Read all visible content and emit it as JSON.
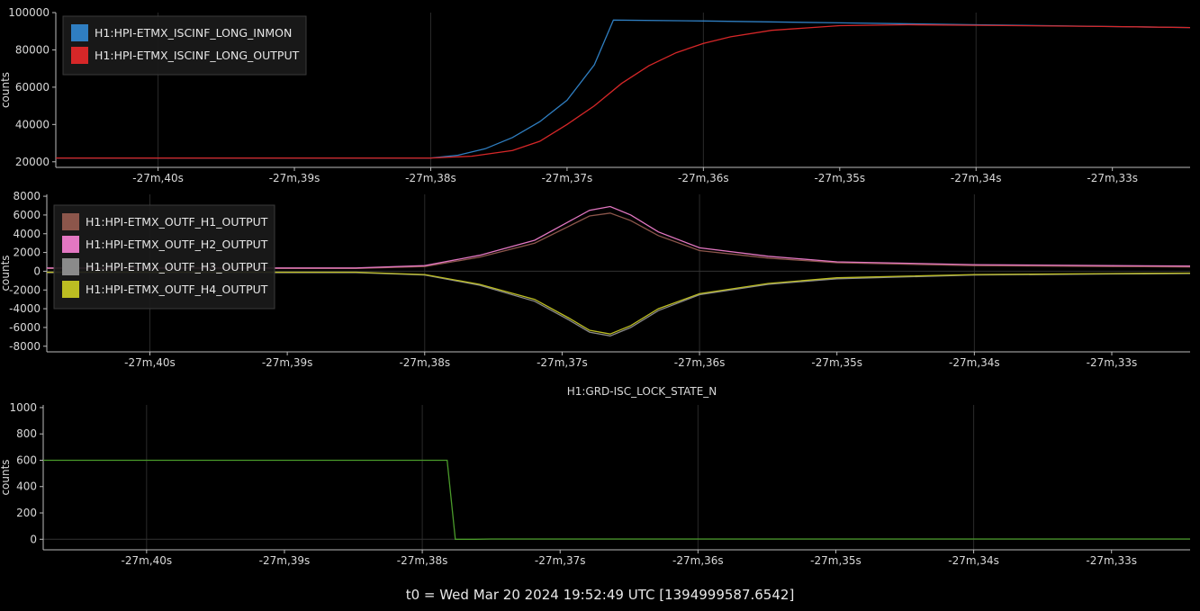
{
  "footer": "t0 = Wed Mar 20 2024 19:52:49 UTC [1394999587.6542]",
  "colors": {
    "background": "#000000",
    "grid": "#2a2a2a",
    "axis": "#bbbbbb",
    "legend_bg": "#1a1a1a"
  },
  "chart_data": [
    {
      "type": "line",
      "title": "",
      "xlabel": "",
      "ylabel": "counts",
      "x_tick_labels": [
        "-27m,40s",
        "-27m,39s",
        "-27m,38s",
        "-27m,37s",
        "-27m,36s",
        "-27m,35s",
        "-27m,34s",
        "-27m,33s"
      ],
      "x_ticks_s": [
        -1660,
        -1659,
        -1658,
        -1657,
        -1656,
        -1655,
        -1654,
        -1653
      ],
      "xlim": [
        -1660.75,
        -1652.43
      ],
      "ylim": [
        17000,
        100000
      ],
      "y_ticks": [
        20000,
        40000,
        60000,
        80000,
        100000
      ],
      "legend_position": "top-left",
      "series": [
        {
          "name": "H1:HPI-ETMX_ISCINF_LONG_INMON",
          "color": "#2f7ec1",
          "x": [
            -1660.75,
            -1658.0,
            -1657.8,
            -1657.6,
            -1657.4,
            -1657.2,
            -1657.0,
            -1656.8,
            -1656.66,
            -1656.0,
            -1655.0,
            -1654.0,
            -1653.0,
            -1652.43
          ],
          "y": [
            22000,
            22000,
            23500,
            27000,
            33000,
            41500,
            53000,
            72000,
            96000,
            95500,
            94500,
            93500,
            92500,
            92000
          ]
        },
        {
          "name": "H1:HPI-ETMX_ISCINF_LONG_OUTPUT",
          "color": "#d62728",
          "x": [
            -1660.75,
            -1658.0,
            -1657.7,
            -1657.4,
            -1657.2,
            -1657.0,
            -1656.8,
            -1656.6,
            -1656.4,
            -1656.2,
            -1656.0,
            -1655.8,
            -1655.5,
            -1655.0,
            -1654.5,
            -1654.0,
            -1653.0,
            -1652.43
          ],
          "y": [
            22000,
            22000,
            23000,
            26000,
            31000,
            40000,
            50000,
            62000,
            71500,
            78500,
            83500,
            87000,
            90500,
            93000,
            93500,
            93200,
            92500,
            92000
          ]
        }
      ]
    },
    {
      "type": "line",
      "title": "",
      "xlabel": "",
      "ylabel": "counts",
      "x_tick_labels": [
        "-27m,40s",
        "-27m,39s",
        "-27m,38s",
        "-27m,37s",
        "-27m,36s",
        "-27m,35s",
        "-27m,34s",
        "-27m,33s"
      ],
      "x_ticks_s": [
        -1660,
        -1659,
        -1658,
        -1657,
        -1656,
        -1655,
        -1654,
        -1653
      ],
      "xlim": [
        -1660.75,
        -1652.43
      ],
      "ylim": [
        -8600,
        8200
      ],
      "y_ticks": [
        -8000,
        -6000,
        -4000,
        -2000,
        0,
        2000,
        4000,
        6000,
        8000
      ],
      "legend_position": "top-left",
      "series": [
        {
          "name": "H1:HPI-ETMX_OUTF_H1_OUTPUT",
          "color": "#8c564b",
          "x": [
            -1660.75,
            -1658.5,
            -1658.0,
            -1657.6,
            -1657.2,
            -1656.95,
            -1656.8,
            -1656.65,
            -1656.5,
            -1656.3,
            -1656.0,
            -1655.5,
            -1655.0,
            -1654.0,
            -1653.0,
            -1652.43
          ],
          "y": [
            300,
            300,
            500,
            1500,
            3000,
            4800,
            5900,
            6200,
            5400,
            3800,
            2200,
            1400,
            900,
            600,
            500,
            450
          ]
        },
        {
          "name": "H1:HPI-ETMX_OUTF_H2_OUTPUT",
          "color": "#e377c2",
          "x": [
            -1660.75,
            -1658.5,
            -1658.0,
            -1657.6,
            -1657.2,
            -1656.95,
            -1656.8,
            -1656.65,
            -1656.5,
            -1656.3,
            -1656.0,
            -1655.5,
            -1655.0,
            -1654.0,
            -1653.0,
            -1652.43
          ],
          "y": [
            350,
            350,
            600,
            1700,
            3300,
            5300,
            6500,
            6900,
            6000,
            4200,
            2500,
            1600,
            1000,
            700,
            600,
            550
          ]
        },
        {
          "name": "H1:HPI-ETMX_OUTF_H3_OUTPUT",
          "color": "#8a8a8a",
          "x": [
            -1660.75,
            -1658.5,
            -1658.0,
            -1657.6,
            -1657.2,
            -1656.95,
            -1656.8,
            -1656.65,
            -1656.5,
            -1656.3,
            -1656.0,
            -1655.5,
            -1655.0,
            -1654.0,
            -1653.0,
            -1652.43
          ],
          "y": [
            -150,
            -150,
            -400,
            -1500,
            -3200,
            -5200,
            -6500,
            -6900,
            -6000,
            -4200,
            -2500,
            -1400,
            -800,
            -400,
            -300,
            -250
          ]
        },
        {
          "name": "H1:HPI-ETMX_OUTF_H4_OUTPUT",
          "color": "#bcbd22",
          "x": [
            -1660.75,
            -1658.5,
            -1658.0,
            -1657.6,
            -1657.2,
            -1656.95,
            -1656.8,
            -1656.65,
            -1656.5,
            -1656.3,
            -1656.0,
            -1655.5,
            -1655.0,
            -1654.0,
            -1653.0,
            -1652.43
          ],
          "y": [
            -100,
            -100,
            -350,
            -1400,
            -3000,
            -5000,
            -6300,
            -6700,
            -5800,
            -4000,
            -2400,
            -1300,
            -700,
            -350,
            -250,
            -200
          ]
        }
      ]
    },
    {
      "type": "line",
      "title": "H1:GRD-ISC_LOCK_STATE_N",
      "xlabel": "",
      "ylabel": "counts",
      "x_tick_labels": [
        "-27m,40s",
        "-27m,39s",
        "-27m,38s",
        "-27m,37s",
        "-27m,36s",
        "-27m,35s",
        "-27m,34s",
        "-27m,33s"
      ],
      "x_ticks_s": [
        -1660,
        -1659,
        -1658,
        -1657,
        -1656,
        -1655,
        -1654,
        -1653
      ],
      "xlim": [
        -1660.75,
        -1652.43
      ],
      "ylim": [
        -80,
        1020
      ],
      "y_ticks": [
        0,
        200,
        400,
        600,
        800,
        1000
      ],
      "legend_position": "none",
      "series": [
        {
          "name": "",
          "color": "#4a9a2a",
          "x": [
            -1660.75,
            -1657.82,
            -1657.76,
            -1657.62,
            -1657.5,
            -1652.43
          ],
          "y": [
            600,
            600,
            0,
            0,
            2,
            2
          ]
        }
      ]
    }
  ]
}
